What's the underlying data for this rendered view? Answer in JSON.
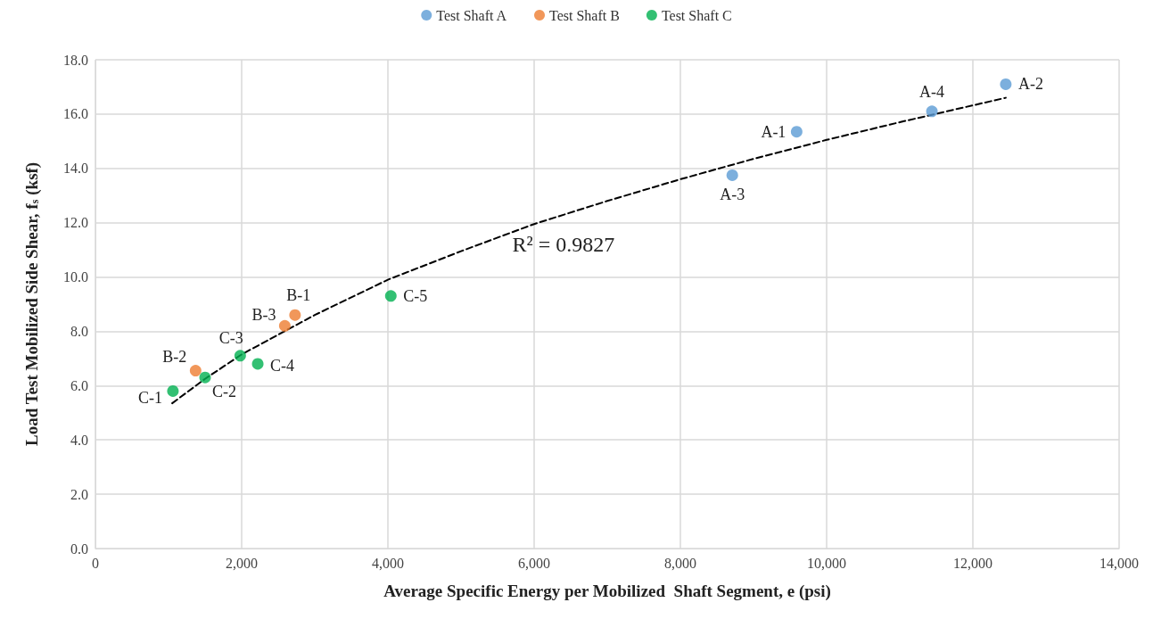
{
  "chart_data": {
    "type": "scatter",
    "xlabel": "Average Specific Energy per Mobilized  Shaft Segment, e (psi)",
    "ylabel": "Load Test Mobilized Side Shear, f$_{s}$ (ksf)",
    "xlim": [
      0,
      14000
    ],
    "xticks": [
      0,
      {
        "value": 2000,
        "label": "2,000"
      },
      {
        "value": 4000,
        "label": "4,000"
      },
      {
        "value": 6000,
        "label": "6,000"
      },
      {
        "value": 8000,
        "label": "8,000"
      },
      {
        "value": 10000,
        "label": "10,000"
      },
      {
        "value": 12000,
        "label": "12,000"
      },
      {
        "value": 14000,
        "label": "14,000"
      }
    ],
    "ylim": [
      0,
      18
    ],
    "yticks": [
      {
        "value": 0,
        "label": "0.0"
      },
      {
        "value": 2,
        "label": "2.0"
      },
      {
        "value": 4,
        "label": "4.0"
      },
      {
        "value": 6,
        "label": "6.0"
      },
      {
        "value": 8,
        "label": "8.0"
      },
      {
        "value": 10,
        "label": "10.0"
      },
      {
        "value": 12,
        "label": "12.0"
      },
      {
        "value": 14,
        "label": "14.0"
      },
      {
        "value": 16,
        "label": "16.0"
      },
      {
        "value": 18,
        "label": "18.0"
      }
    ],
    "grid": true,
    "legend": "top",
    "marker": "circle",
    "series": [
      {
        "name": "Test Shaft A",
        "color": "#5b9bd5",
        "x": [
          9590,
          12450,
          8710,
          11440
        ],
        "values": [
          15.35,
          17.1,
          13.75,
          16.1
        ]
      },
      {
        "name": "Test Shaft B",
        "color": "#ed7d31",
        "x": [
          2730,
          1370,
          2590
        ],
        "values": [
          8.6,
          6.55,
          8.2
        ]
      },
      {
        "name": "Test Shaft C",
        "color": "#00b050",
        "x": [
          1060,
          1500,
          1980,
          2220,
          4040
        ],
        "values": [
          5.8,
          6.3,
          7.1,
          6.8,
          9.3
        ]
      },
      {
        "type": "line",
        "color": "#000000",
        "line_style": "dashed",
        "marker": "none",
        "x": [
          1050,
          1500,
          2000,
          3000,
          4000,
          5000,
          6000,
          7000,
          8000,
          9000,
          10000,
          11000,
          12450
        ],
        "values": [
          5.35,
          6.25,
          7.15,
          8.6,
          9.9,
          10.95,
          11.95,
          12.8,
          13.6,
          14.35,
          15.05,
          15.7,
          16.6
        ]
      }
    ],
    "annotations": [
      {
        "text": "A-1",
        "x": 9590,
        "y": 15.35
      },
      {
        "text": "A-2",
        "x": 12450,
        "y": 17.1
      },
      {
        "text": "A-3",
        "x": 8710,
        "y": 13.75
      },
      {
        "text": "A-4",
        "x": 11440,
        "y": 16.1
      },
      {
        "text": "B-1",
        "x": 2730,
        "y": 8.6
      },
      {
        "text": "B-2",
        "x": 1370,
        "y": 6.55
      },
      {
        "text": "B-3",
        "x": 2590,
        "y": 8.2
      },
      {
        "text": "C-1",
        "x": 1060,
        "y": 5.8
      },
      {
        "text": "C-2",
        "x": 1500,
        "y": 6.3
      },
      {
        "text": "C-3",
        "x": 1980,
        "y": 7.1
      },
      {
        "text": "C-4",
        "x": 2220,
        "y": 6.8
      },
      {
        "text": "C-5",
        "x": 4040,
        "y": 9.3
      },
      "R² = 0.9827"
    ]
  }
}
